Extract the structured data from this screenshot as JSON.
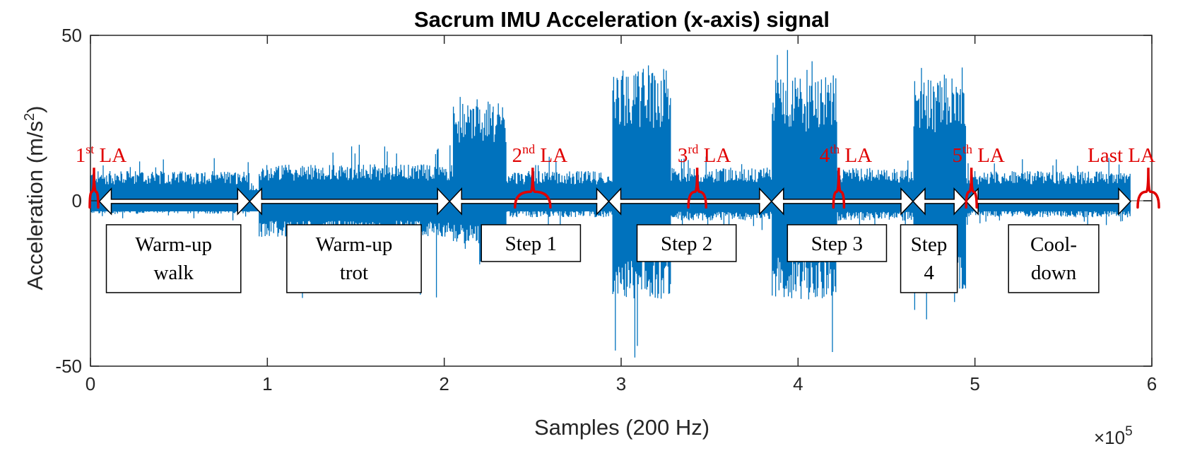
{
  "chart_data": {
    "type": "line",
    "title": "Sacrum IMU Acceleration (x-axis) signal",
    "xlabel": "Samples (200 Hz)",
    "ylabel": "Acceleration (m/s",
    "ylabel_sup": "2",
    "ylabel_end": ")",
    "x_exponent_label": "×10",
    "x_exponent_sup": "5",
    "xlim": [
      0,
      6
    ],
    "ylim": [
      -50,
      50
    ],
    "x_ticks": [
      "0",
      "1",
      "2",
      "3",
      "4",
      "5",
      "6"
    ],
    "y_ticks": [
      "50",
      "0",
      "-50"
    ],
    "y_tick_values": [
      50,
      0,
      -50
    ],
    "signal_end": 5.88,
    "series_color": "#0072BD",
    "annotation_color": "#E00000",
    "segments": [
      {
        "x0": 0.0,
        "x1": 0.9,
        "amp_pos": 9,
        "amp_neg": 4,
        "spike_pos": 13,
        "spike_neg": 6
      },
      {
        "x0": 0.9,
        "x1": 0.95,
        "amp_pos": 4,
        "amp_neg": 2,
        "spike_pos": 6,
        "spike_neg": 3
      },
      {
        "x0": 0.95,
        "x1": 2.05,
        "amp_pos": 11,
        "amp_neg": 11,
        "spike_pos": 18,
        "spike_neg": 30
      },
      {
        "x0": 2.05,
        "x1": 2.35,
        "amp_pos": 30,
        "amp_neg": 13,
        "spike_pos": 35,
        "spike_neg": 20
      },
      {
        "x0": 2.35,
        "x1": 2.95,
        "amp_pos": 9,
        "amp_neg": 5,
        "spike_pos": 14,
        "spike_neg": 10
      },
      {
        "x0": 2.95,
        "x1": 3.28,
        "amp_pos": 40,
        "amp_neg": 30,
        "spike_pos": 50,
        "spike_neg": 48
      },
      {
        "x0": 3.28,
        "x1": 3.85,
        "amp_pos": 10,
        "amp_neg": 6,
        "spike_pos": 14,
        "spike_neg": 10
      },
      {
        "x0": 3.85,
        "x1": 4.22,
        "amp_pos": 38,
        "amp_neg": 30,
        "spike_pos": 48,
        "spike_neg": 47
      },
      {
        "x0": 4.22,
        "x1": 4.65,
        "amp_pos": 10,
        "amp_neg": 6,
        "spike_pos": 14,
        "spike_neg": 10
      },
      {
        "x0": 4.65,
        "x1": 4.95,
        "amp_pos": 37,
        "amp_neg": 28,
        "spike_pos": 44,
        "spike_neg": 40
      },
      {
        "x0": 4.95,
        "x1": 5.88,
        "amp_pos": 9,
        "amp_neg": 5,
        "spike_pos": 13,
        "spike_neg": 8
      }
    ],
    "la_markers": [
      {
        "pre": "1",
        "sup": "st",
        "post": " LA",
        "x": 0.02,
        "width": 0.04
      },
      {
        "pre": "2",
        "sup": "nd",
        "post": " LA",
        "x": 2.5,
        "width": 0.2
      },
      {
        "pre": "3",
        "sup": "rd",
        "post": " LA",
        "x": 3.43,
        "width": 0.1
      },
      {
        "pre": "4",
        "sup": "th",
        "post": " LA",
        "x": 4.23,
        "width": 0.06
      },
      {
        "pre": "5",
        "sup": "th",
        "post": " LA",
        "x": 4.98,
        "width": 0.06
      },
      {
        "pre": "Last",
        "sup": "",
        "post": " LA",
        "x": 5.98,
        "width": 0.12
      }
    ],
    "phases": [
      {
        "lines": [
          "Warm-up",
          "walk"
        ],
        "x0": 0.05,
        "x1": 0.9,
        "box_x0": 0.09,
        "box_x1": 0.85
      },
      {
        "lines": [
          "Warm-up",
          "trot"
        ],
        "x0": 0.9,
        "x1": 2.03,
        "box_x0": 1.11,
        "box_x1": 1.87
      },
      {
        "lines": [
          "Step 1"
        ],
        "x0": 2.03,
        "x1": 2.93,
        "box_x0": 2.21,
        "box_x1": 2.77
      },
      {
        "lines": [
          "Step 2"
        ],
        "x0": 2.93,
        "x1": 3.85,
        "box_x0": 3.09,
        "box_x1": 3.65
      },
      {
        "lines": [
          "Step 3"
        ],
        "x0": 3.85,
        "x1": 4.65,
        "box_x0": 3.94,
        "box_x1": 4.5
      },
      {
        "lines": [
          "Step",
          "4"
        ],
        "x0": 4.65,
        "x1": 4.95,
        "box_x0": 4.58,
        "box_x1": 4.9
      },
      {
        "lines": [
          "Cool-",
          "down"
        ],
        "x0": 4.95,
        "x1": 5.88,
        "box_x0": 5.19,
        "box_x1": 5.7
      }
    ]
  }
}
